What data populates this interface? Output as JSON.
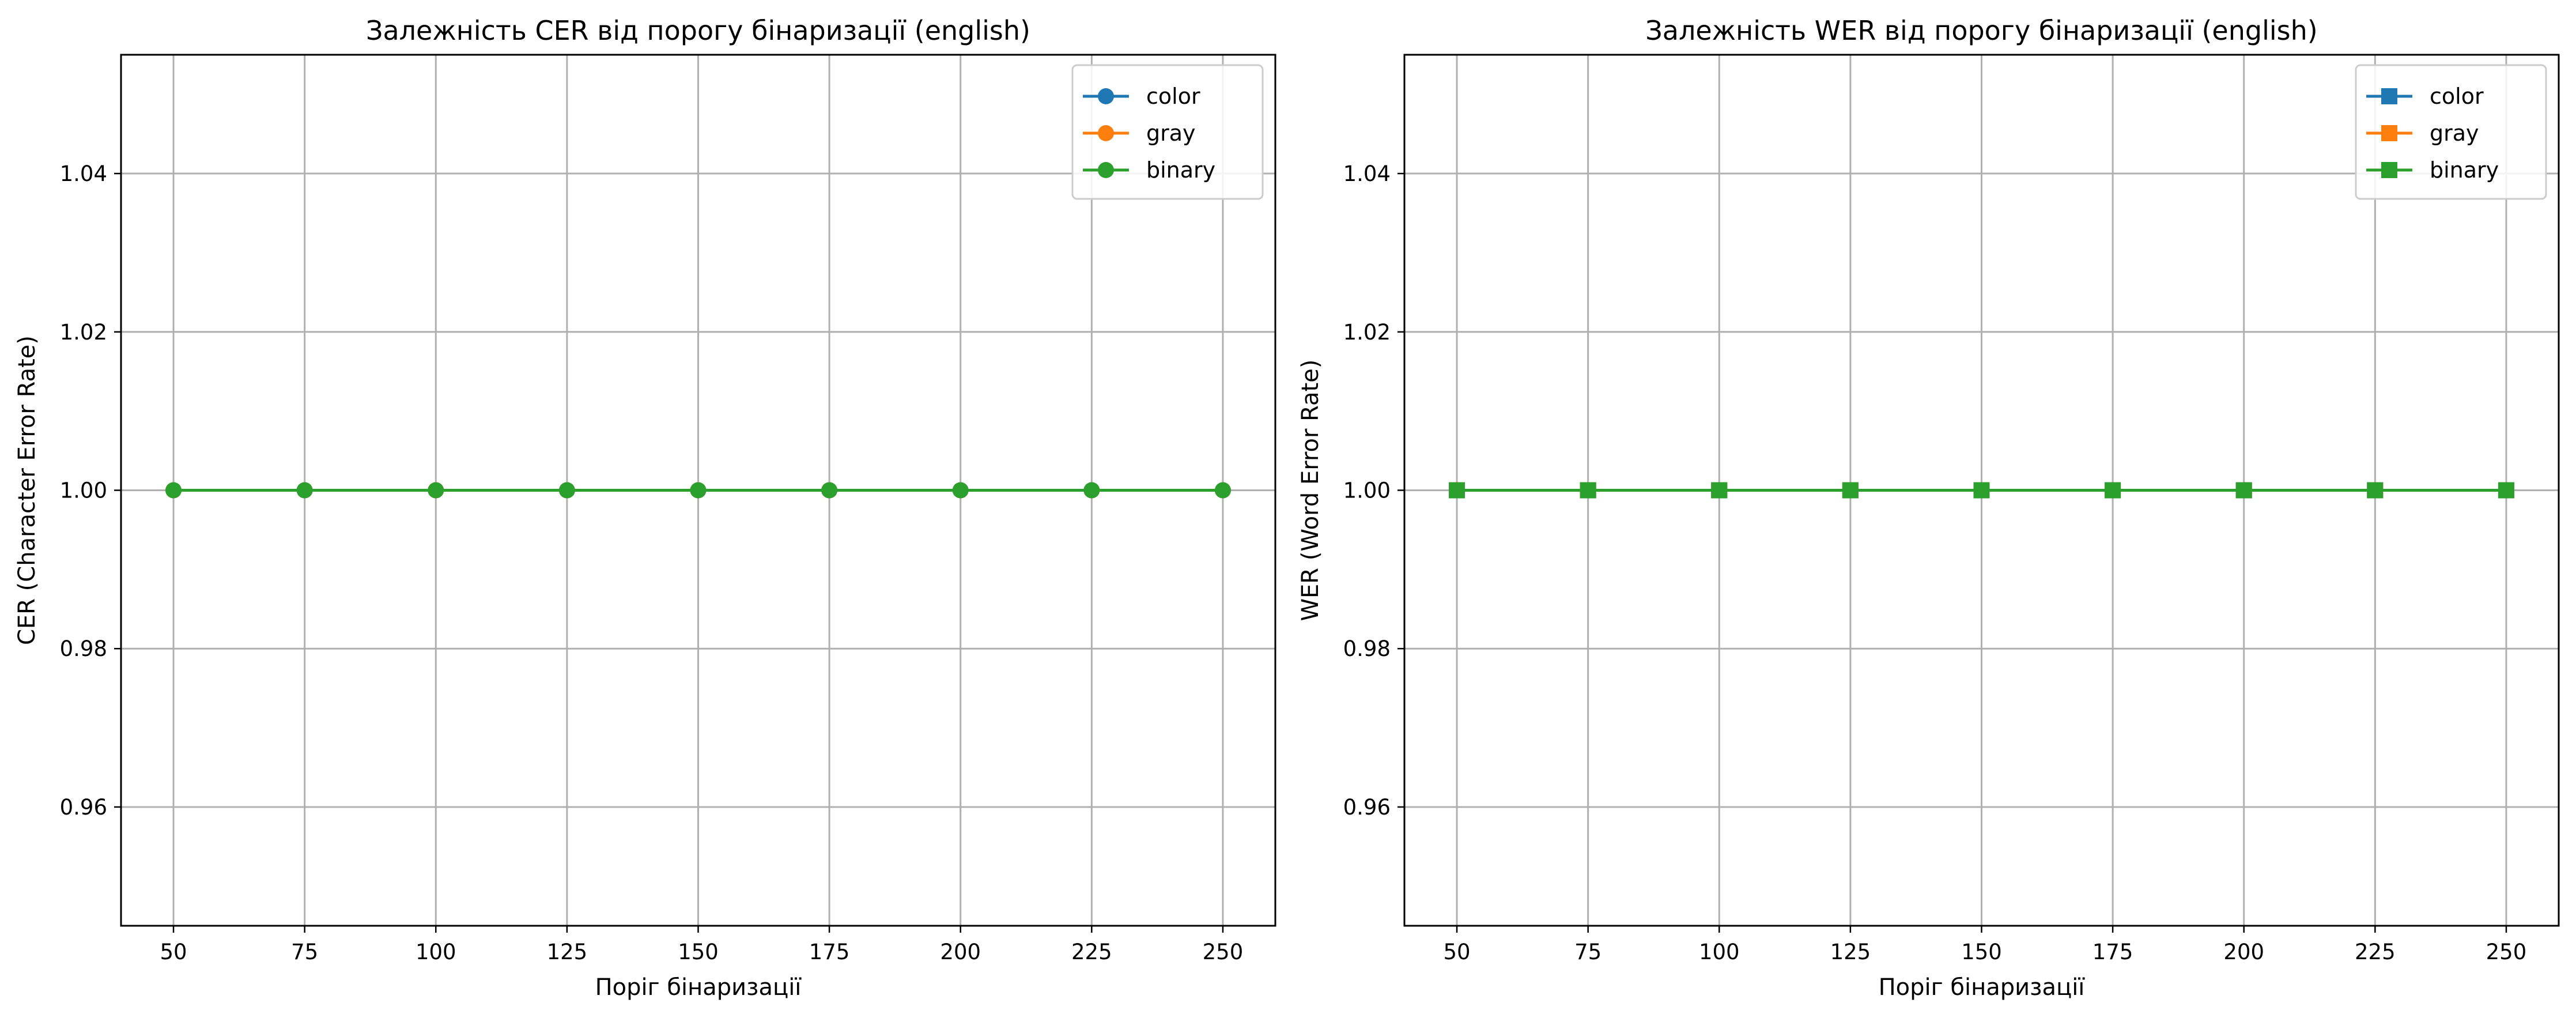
{
  "chart_data": [
    {
      "type": "line",
      "title": "Залежність CER від порогу бінаризації (english)",
      "xlabel": "Поріг бінаризації",
      "ylabel": "CER (Character Error Rate)",
      "x": [
        50,
        75,
        100,
        125,
        150,
        175,
        200,
        225,
        250
      ],
      "xticks": [
        "50",
        "75",
        "100",
        "125",
        "150",
        "175",
        "200",
        "225",
        "250"
      ],
      "xlim": [
        40,
        260
      ],
      "yticks": [
        "0.96",
        "0.98",
        "1.00",
        "1.02",
        "1.04"
      ],
      "ytick_values": [
        0.96,
        0.98,
        1.0,
        1.02,
        1.04
      ],
      "ylim": [
        0.945,
        1.055
      ],
      "marker": "circle",
      "grid": true,
      "legend_position": "top-right",
      "series": [
        {
          "name": "color",
          "color": "#1f77b4",
          "values": [
            1.0,
            1.0,
            1.0,
            1.0,
            1.0,
            1.0,
            1.0,
            1.0,
            1.0
          ]
        },
        {
          "name": "gray",
          "color": "#ff7f0e",
          "values": [
            1.0,
            1.0,
            1.0,
            1.0,
            1.0,
            1.0,
            1.0,
            1.0,
            1.0
          ]
        },
        {
          "name": "binary",
          "color": "#2ca02c",
          "values": [
            1.0,
            1.0,
            1.0,
            1.0,
            1.0,
            1.0,
            1.0,
            1.0,
            1.0
          ]
        }
      ]
    },
    {
      "type": "line",
      "title": "Залежність WER від порогу бінаризації (english)",
      "xlabel": "Поріг бінаризації",
      "ylabel": "WER (Word Error Rate)",
      "x": [
        50,
        75,
        100,
        125,
        150,
        175,
        200,
        225,
        250
      ],
      "xticks": [
        "50",
        "75",
        "100",
        "125",
        "150",
        "175",
        "200",
        "225",
        "250"
      ],
      "xlim": [
        40,
        260
      ],
      "yticks": [
        "0.96",
        "0.98",
        "1.00",
        "1.02",
        "1.04"
      ],
      "ytick_values": [
        0.96,
        0.98,
        1.0,
        1.02,
        1.04
      ],
      "ylim": [
        0.945,
        1.055
      ],
      "marker": "square",
      "grid": true,
      "legend_position": "top-right",
      "series": [
        {
          "name": "color",
          "color": "#1f77b4",
          "values": [
            1.0,
            1.0,
            1.0,
            1.0,
            1.0,
            1.0,
            1.0,
            1.0,
            1.0
          ]
        },
        {
          "name": "gray",
          "color": "#ff7f0e",
          "values": [
            1.0,
            1.0,
            1.0,
            1.0,
            1.0,
            1.0,
            1.0,
            1.0,
            1.0
          ]
        },
        {
          "name": "binary",
          "color": "#2ca02c",
          "values": [
            1.0,
            1.0,
            1.0,
            1.0,
            1.0,
            1.0,
            1.0,
            1.0,
            1.0
          ]
        }
      ]
    }
  ]
}
